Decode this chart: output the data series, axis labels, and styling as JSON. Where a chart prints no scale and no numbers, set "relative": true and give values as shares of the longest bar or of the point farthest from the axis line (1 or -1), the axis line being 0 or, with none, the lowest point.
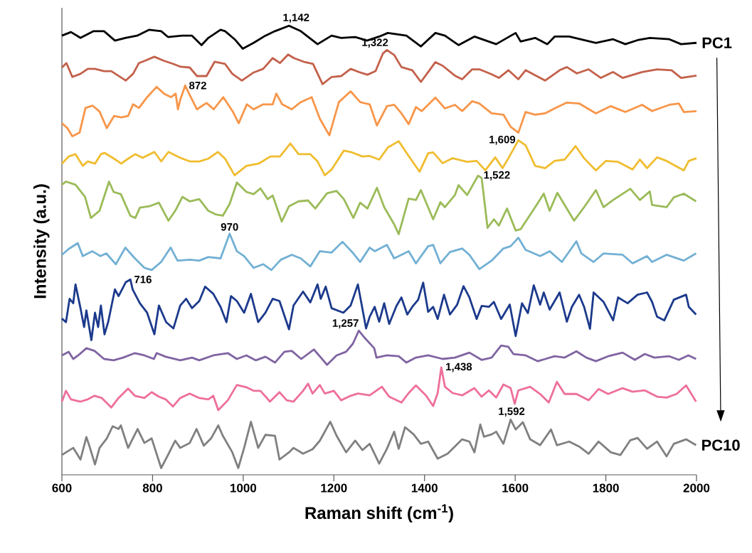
{
  "chart_data": {
    "type": "line",
    "relative": true,
    "xlabel": "Raman shift (cm$^{-1}$)",
    "ylabel": "Intensity (a.u.)",
    "xlim": [
      600,
      2000
    ],
    "xticks": [
      600,
      800,
      1000,
      1200,
      1400,
      1600,
      1800,
      2000
    ],
    "series": [
      {
        "name": "PC1",
        "color": "#000000",
        "x": [
          600,
          620,
          641,
          670,
          693,
          717,
          740,
          766,
          792,
          819,
          834,
          866,
          887,
          908,
          923,
          950,
          960,
          981,
          999,
          1023,
          1049,
          1070,
          1101,
          1127,
          1164,
          1195,
          1216,
          1247,
          1273,
          1300,
          1319,
          1360,
          1392,
          1424,
          1445,
          1475,
          1510,
          1558,
          1601,
          1612,
          1644,
          1671,
          1687,
          1719,
          1778,
          1816,
          1843,
          1870,
          1897,
          1940,
          1966,
          2000
        ],
        "values": [
          0.978,
          0.986,
          0.973,
          0.988,
          0.988,
          0.967,
          0.973,
          0.978,
          0.991,
          0.988,
          0.975,
          0.978,
          0.978,
          0.957,
          0.973,
          0.991,
          0.988,
          0.97,
          0.949,
          0.962,
          0.978,
          0.988,
          1.0,
          0.988,
          0.959,
          0.978,
          0.973,
          0.975,
          0.967,
          0.976,
          0.984,
          0.978,
          0.954,
          0.984,
          0.978,
          0.957,
          0.976,
          0.959,
          0.984,
          0.965,
          0.973,
          0.959,
          0.976,
          0.976,
          0.962,
          0.97,
          0.959,
          0.968,
          0.973,
          0.97,
          0.959,
          0.962
        ]
      },
      {
        "color": "#c3614b",
        "x": [
          600,
          610,
          623,
          641,
          657,
          673,
          693,
          709,
          741,
          757,
          770,
          783,
          804,
          825,
          846,
          861,
          882,
          898,
          919,
          937,
          960,
          976,
          997,
          1023,
          1044,
          1065,
          1081,
          1099,
          1112,
          1133,
          1154,
          1175,
          1195,
          1216,
          1237,
          1258,
          1274,
          1292,
          1308,
          1317,
          1333,
          1349,
          1373,
          1392,
          1408,
          1424,
          1440,
          1467,
          1483,
          1505,
          1521,
          1548,
          1564,
          1585,
          1607,
          1623,
          1666,
          1698,
          1714,
          1736,
          1762,
          1789,
          1816,
          1837,
          1880,
          1913,
          1945,
          1966,
          2000
        ],
        "values": [
          0.907,
          0.917,
          0.886,
          0.893,
          0.904,
          0.904,
          0.899,
          0.899,
          0.878,
          0.893,
          0.917,
          0.922,
          0.931,
          0.922,
          0.915,
          0.909,
          0.907,
          0.888,
          0.888,
          0.92,
          0.915,
          0.893,
          0.878,
          0.896,
          0.904,
          0.928,
          0.917,
          0.936,
          0.928,
          0.92,
          0.915,
          0.87,
          0.886,
          0.888,
          0.904,
          0.896,
          0.891,
          0.899,
          0.938,
          0.946,
          0.935,
          0.908,
          0.901,
          0.875,
          0.897,
          0.919,
          0.911,
          0.889,
          0.881,
          0.903,
          0.903,
          0.892,
          0.884,
          0.901,
          0.881,
          0.901,
          0.878,
          0.901,
          0.908,
          0.894,
          0.903,
          0.884,
          0.897,
          0.884,
          0.897,
          0.903,
          0.901,
          0.884,
          0.889
        ]
      },
      {
        "color": "#f7964a",
        "x": [
          600,
          612,
          623,
          639,
          652,
          668,
          683,
          699,
          715,
          731,
          746,
          757,
          770,
          788,
          809,
          825,
          841,
          851,
          856,
          861,
          872,
          882,
          898,
          919,
          935,
          956,
          977,
          990,
          1008,
          1023,
          1044,
          1065,
          1073,
          1086,
          1107,
          1127,
          1151,
          1169,
          1190,
          1211,
          1237,
          1258,
          1279,
          1295,
          1317,
          1333,
          1349,
          1365,
          1381,
          1394,
          1424,
          1445,
          1467,
          1483,
          1505,
          1521,
          1548,
          1574,
          1590,
          1607,
          1623,
          1644,
          1666,
          1687,
          1714,
          1741,
          1778,
          1811,
          1843,
          1880,
          1902,
          1940,
          1961,
          1972,
          2000
        ],
        "values": [
          0.783,
          0.772,
          0.754,
          0.762,
          0.817,
          0.822,
          0.809,
          0.772,
          0.799,
          0.796,
          0.799,
          0.825,
          0.817,
          0.841,
          0.864,
          0.849,
          0.841,
          0.849,
          0.814,
          0.835,
          0.867,
          0.846,
          0.814,
          0.828,
          0.814,
          0.841,
          0.809,
          0.783,
          0.825,
          0.814,
          0.825,
          0.825,
          0.849,
          0.825,
          0.814,
          0.83,
          0.841,
          0.793,
          0.756,
          0.83,
          0.854,
          0.83,
          0.825,
          0.778,
          0.821,
          0.824,
          0.805,
          0.781,
          0.819,
          0.81,
          0.84,
          0.816,
          0.824,
          0.81,
          0.832,
          0.827,
          0.805,
          0.802,
          0.775,
          0.762,
          0.808,
          0.802,
          0.805,
          0.816,
          0.829,
          0.827,
          0.805,
          0.821,
          0.808,
          0.824,
          0.81,
          0.824,
          0.827,
          0.808,
          0.81
        ]
      },
      {
        "color": "#f0bd30",
        "x": [
          600,
          615,
          630,
          646,
          657,
          673,
          686,
          694,
          715,
          731,
          746,
          762,
          778,
          804,
          819,
          835,
          861,
          882,
          903,
          923,
          944,
          960,
          981,
          1007,
          1034,
          1060,
          1081,
          1104,
          1122,
          1148,
          1164,
          1180,
          1195,
          1222,
          1237,
          1263,
          1279,
          1300,
          1319,
          1343,
          1365,
          1389,
          1408,
          1419,
          1440,
          1462,
          1494,
          1515,
          1534,
          1556,
          1572,
          1585,
          1607,
          1623,
          1644,
          1666,
          1687,
          1709,
          1733,
          1752,
          1778,
          1800,
          1827,
          1859,
          1875,
          1891,
          1913,
          1934,
          1972,
          1983,
          2000
        ],
        "values": [
          0.693,
          0.709,
          0.714,
          0.688,
          0.698,
          0.693,
          0.714,
          0.717,
          0.704,
          0.693,
          0.704,
          0.714,
          0.706,
          0.719,
          0.698,
          0.719,
          0.706,
          0.698,
          0.698,
          0.704,
          0.719,
          0.704,
          0.667,
          0.688,
          0.693,
          0.709,
          0.709,
          0.738,
          0.714,
          0.714,
          0.698,
          0.667,
          0.68,
          0.722,
          0.719,
          0.709,
          0.71,
          0.702,
          0.729,
          0.743,
          0.71,
          0.675,
          0.716,
          0.718,
          0.694,
          0.705,
          0.697,
          0.699,
          0.678,
          0.707,
          0.683,
          0.705,
          0.745,
          0.734,
          0.688,
          0.683,
          0.699,
          0.702,
          0.732,
          0.705,
          0.678,
          0.699,
          0.697,
          0.68,
          0.702,
          0.683,
          0.707,
          0.699,
          0.678,
          0.699,
          0.705
        ]
      },
      {
        "color": "#9bbb59",
        "x": [
          600,
          609,
          630,
          651,
          664,
          683,
          704,
          714,
          730,
          751,
          762,
          772,
          793,
          814,
          835,
          850,
          866,
          882,
          903,
          923,
          939,
          955,
          970,
          986,
          1007,
          1023,
          1038,
          1054,
          1065,
          1085,
          1101,
          1122,
          1143,
          1159,
          1185,
          1206,
          1222,
          1243,
          1258,
          1274,
          1295,
          1311,
          1333,
          1343,
          1365,
          1381,
          1392,
          1419,
          1435,
          1445,
          1467,
          1475,
          1494,
          1518,
          1526,
          1539,
          1553,
          1564,
          1582,
          1601,
          1612,
          1644,
          1663,
          1676,
          1693,
          1709,
          1730,
          1752,
          1778,
          1795,
          1816,
          1854,
          1875,
          1897,
          1902,
          1934,
          1950,
          1972,
          1999
        ],
        "values": [
          0.646,
          0.653,
          0.646,
          0.619,
          0.572,
          0.588,
          0.653,
          0.63,
          0.625,
          0.577,
          0.572,
          0.595,
          0.598,
          0.606,
          0.566,
          0.588,
          0.619,
          0.609,
          0.614,
          0.588,
          0.58,
          0.577,
          0.603,
          0.651,
          0.63,
          0.625,
          0.638,
          0.614,
          0.622,
          0.564,
          0.598,
          0.609,
          0.611,
          0.593,
          0.627,
          0.632,
          0.614,
          0.572,
          0.606,
          0.593,
          0.639,
          0.596,
          0.558,
          0.536,
          0.615,
          0.612,
          0.634,
          0.569,
          0.607,
          0.596,
          0.623,
          0.645,
          0.623,
          0.666,
          0.661,
          0.55,
          0.569,
          0.555,
          0.593,
          0.544,
          0.547,
          0.596,
          0.626,
          0.588,
          0.628,
          0.601,
          0.566,
          0.596,
          0.634,
          0.596,
          0.612,
          0.637,
          0.612,
          0.631,
          0.601,
          0.596,
          0.618,
          0.626,
          0.609
        ]
      },
      {
        "color": "#72b0d4",
        "x": [
          600,
          615,
          635,
          646,
          667,
          685,
          698,
          719,
          740,
          761,
          782,
          798,
          819,
          840,
          855,
          882,
          903,
          923,
          950,
          970,
          986,
          1002,
          1023,
          1044,
          1062,
          1083,
          1107,
          1127,
          1148,
          1169,
          1195,
          1219,
          1243,
          1258,
          1279,
          1290,
          1317,
          1333,
          1349,
          1365,
          1381,
          1408,
          1419,
          1435,
          1456,
          1483,
          1499,
          1521,
          1548,
          1574,
          1590,
          1607,
          1623,
          1655,
          1676,
          1703,
          1735,
          1746,
          1773,
          1795,
          1837,
          1859,
          1891,
          1902,
          1934,
          1972,
          1999
        ],
        "values": [
          0.49,
          0.503,
          0.516,
          0.487,
          0.498,
          0.487,
          0.493,
          0.469,
          0.506,
          0.482,
          0.461,
          0.456,
          0.474,
          0.506,
          0.477,
          0.479,
          0.477,
          0.485,
          0.482,
          0.537,
          0.498,
          0.487,
          0.461,
          0.469,
          0.456,
          0.479,
          0.49,
          0.482,
          0.464,
          0.498,
          0.495,
          0.519,
          0.493,
          0.474,
          0.506,
          0.498,
          0.512,
          0.482,
          0.49,
          0.498,
          0.471,
          0.509,
          0.512,
          0.471,
          0.496,
          0.504,
          0.49,
          0.458,
          0.477,
          0.504,
          0.509,
          0.528,
          0.501,
          0.487,
          0.498,
          0.474,
          0.52,
          0.493,
          0.474,
          0.493,
          0.49,
          0.471,
          0.487,
          0.474,
          0.49,
          0.477,
          0.493
        ]
      },
      {
        "color": "#1c3a8c",
        "x": [
          600,
          609,
          617,
          625,
          630,
          641,
          649,
          654,
          665,
          673,
          680,
          686,
          694,
          702,
          717,
          725,
          741,
          751,
          756,
          772,
          788,
          804,
          814,
          830,
          846,
          861,
          874,
          887,
          903,
          916,
          934,
          950,
          963,
          973,
          986,
          1002,
          1017,
          1033,
          1049,
          1065,
          1080,
          1101,
          1111,
          1132,
          1148,
          1164,
          1171,
          1182,
          1195,
          1221,
          1237,
          1253,
          1271,
          1279,
          1290,
          1300,
          1311,
          1322,
          1338,
          1349,
          1362,
          1373,
          1386,
          1397,
          1408,
          1419,
          1429,
          1443,
          1456,
          1472,
          1486,
          1499,
          1515,
          1526,
          1542,
          1553,
          1569,
          1588,
          1601,
          1615,
          1628,
          1641,
          1655,
          1663,
          1676,
          1698,
          1714,
          1725,
          1741,
          1752,
          1765,
          1773,
          1795,
          1816,
          1827,
          1848,
          1870,
          1891,
          1902,
          1913,
          1929,
          1950,
          1977,
          1983,
          1999
        ],
        "values": [
          0.348,
          0.34,
          0.392,
          0.382,
          0.424,
          0.371,
          0.329,
          0.366,
          0.3,
          0.361,
          0.329,
          0.377,
          0.313,
          0.34,
          0.413,
          0.398,
          0.429,
          0.435,
          0.413,
          0.382,
          0.361,
          0.313,
          0.377,
          0.34,
          0.326,
          0.377,
          0.392,
          0.371,
          0.387,
          0.419,
          0.403,
          0.374,
          0.34,
          0.398,
          0.387,
          0.361,
          0.403,
          0.34,
          0.361,
          0.392,
          0.387,
          0.324,
          0.377,
          0.408,
          0.384,
          0.424,
          0.392,
          0.419,
          0.371,
          0.361,
          0.377,
          0.424,
          0.326,
          0.352,
          0.374,
          0.341,
          0.382,
          0.336,
          0.376,
          0.395,
          0.357,
          0.374,
          0.39,
          0.428,
          0.363,
          0.374,
          0.347,
          0.401,
          0.357,
          0.379,
          0.42,
          0.395,
          0.347,
          0.376,
          0.374,
          0.385,
          0.347,
          0.379,
          0.309,
          0.382,
          0.36,
          0.422,
          0.379,
          0.406,
          0.368,
          0.406,
          0.341,
          0.374,
          0.401,
          0.374,
          0.325,
          0.406,
          0.385,
          0.344,
          0.395,
          0.382,
          0.401,
          0.406,
          0.385,
          0.352,
          0.344,
          0.39,
          0.401,
          0.374,
          0.357
        ]
      },
      {
        "color": "#8064a2",
        "x": [
          600,
          615,
          625,
          636,
          654,
          672,
          693,
          714,
          735,
          761,
          782,
          803,
          809,
          829,
          861,
          887,
          903,
          934,
          966,
          986,
          1007,
          1028,
          1049,
          1070,
          1091,
          1107,
          1128,
          1156,
          1185,
          1206,
          1227,
          1242,
          1255,
          1268,
          1289,
          1294,
          1317,
          1343,
          1360,
          1381,
          1408,
          1440,
          1467,
          1499,
          1526,
          1548,
          1569,
          1585,
          1596,
          1623,
          1650,
          1687,
          1709,
          1735,
          1757,
          1778,
          1805,
          1837,
          1864,
          1886,
          1907,
          1940,
          1961,
          1982,
          1999
        ],
        "values": [
          0.266,
          0.274,
          0.258,
          0.266,
          0.282,
          0.276,
          0.258,
          0.255,
          0.261,
          0.271,
          0.266,
          0.258,
          0.271,
          0.263,
          0.255,
          0.261,
          0.255,
          0.266,
          0.271,
          0.258,
          0.266,
          0.255,
          0.263,
          0.25,
          0.274,
          0.276,
          0.258,
          0.279,
          0.245,
          0.266,
          0.274,
          0.292,
          0.321,
          0.305,
          0.282,
          0.261,
          0.266,
          0.264,
          0.25,
          0.261,
          0.266,
          0.258,
          0.261,
          0.272,
          0.256,
          0.261,
          0.288,
          0.285,
          0.269,
          0.266,
          0.253,
          0.264,
          0.261,
          0.275,
          0.261,
          0.253,
          0.264,
          0.272,
          0.256,
          0.269,
          0.261,
          0.264,
          0.256,
          0.266,
          0.258
        ]
      },
      {
        "color": "#ee6f9c",
        "x": [
          600,
          609,
          620,
          641,
          657,
          672,
          688,
          709,
          725,
          746,
          761,
          782,
          798,
          814,
          829,
          845,
          861,
          882,
          903,
          923,
          934,
          945,
          966,
          986,
          1007,
          1023,
          1038,
          1059,
          1080,
          1096,
          1111,
          1132,
          1143,
          1153,
          1169,
          1180,
          1200,
          1216,
          1237,
          1253,
          1279,
          1306,
          1322,
          1349,
          1365,
          1381,
          1403,
          1419,
          1429,
          1437,
          1445,
          1462,
          1483,
          1510,
          1526,
          1542,
          1558,
          1574,
          1590,
          1599,
          1607,
          1633,
          1655,
          1674,
          1692,
          1709,
          1735,
          1762,
          1784,
          1805,
          1837,
          1859,
          1886,
          1913,
          1934,
          1956,
          1977,
          1999
        ],
        "values": [
          0.163,
          0.187,
          0.168,
          0.163,
          0.168,
          0.176,
          0.171,
          0.15,
          0.171,
          0.192,
          0.176,
          0.171,
          0.184,
          0.174,
          0.168,
          0.152,
          0.171,
          0.181,
          0.171,
          0.168,
          0.176,
          0.144,
          0.166,
          0.2,
          0.195,
          0.187,
          0.187,
          0.163,
          0.184,
          0.166,
          0.163,
          0.187,
          0.203,
          0.181,
          0.2,
          0.181,
          0.187,
          0.166,
          0.176,
          0.181,
          0.177,
          0.196,
          0.174,
          0.161,
          0.182,
          0.199,
          0.177,
          0.153,
          0.182,
          0.239,
          0.196,
          0.182,
          0.177,
          0.193,
          0.174,
          0.188,
          0.172,
          0.201,
          0.193,
          0.158,
          0.188,
          0.196,
          0.18,
          0.161,
          0.207,
          0.18,
          0.18,
          0.166,
          0.191,
          0.18,
          0.193,
          0.185,
          0.188,
          0.174,
          0.172,
          0.18,
          0.199,
          0.163
        ]
      },
      {
        "name": "PC10",
        "color": "#808080",
        "x": [
          600,
          609,
          625,
          641,
          654,
          662,
          673,
          683,
          699,
          712,
          725,
          730,
          746,
          767,
          782,
          798,
          819,
          834,
          850,
          861,
          882,
          897,
          913,
          929,
          945,
          955,
          976,
          989,
          1002,
          1017,
          1033,
          1049,
          1070,
          1080,
          1101,
          1111,
          1132,
          1153,
          1169,
          1192,
          1206,
          1227,
          1247,
          1263,
          1279,
          1300,
          1317,
          1333,
          1343,
          1357,
          1376,
          1392,
          1408,
          1429,
          1451,
          1483,
          1499,
          1510,
          1523,
          1531,
          1548,
          1558,
          1574,
          1590,
          1601,
          1617,
          1633,
          1655,
          1679,
          1692,
          1719,
          1741,
          1762,
          1784,
          1811,
          1832,
          1854,
          1870,
          1891,
          1913,
          1934,
          1950,
          1977,
          1999
        ],
        "values": [
          0.044,
          0.05,
          0.06,
          0.034,
          0.084,
          0.06,
          0.023,
          0.06,
          0.081,
          0.108,
          0.102,
          0.11,
          0.06,
          0.102,
          0.071,
          0.081,
          0.015,
          0.044,
          0.076,
          0.06,
          0.071,
          0.102,
          0.065,
          0.081,
          0.11,
          0.087,
          0.05,
          0.015,
          0.06,
          0.118,
          0.06,
          0.089,
          0.087,
          0.034,
          0.05,
          0.06,
          0.047,
          0.057,
          0.076,
          0.118,
          0.087,
          0.05,
          0.076,
          0.055,
          0.069,
          0.025,
          0.058,
          0.096,
          0.058,
          0.106,
          0.09,
          0.069,
          0.074,
          0.036,
          0.047,
          0.079,
          0.074,
          0.05,
          0.112,
          0.085,
          0.09,
          0.096,
          0.069,
          0.123,
          0.101,
          0.117,
          0.079,
          0.066,
          0.101,
          0.066,
          0.074,
          0.063,
          0.047,
          0.074,
          0.05,
          0.044,
          0.077,
          0.082,
          0.058,
          0.074,
          0.041,
          0.069,
          0.079,
          0.066
        ]
      }
    ],
    "annotations": [
      {
        "text": "1,142",
        "x": 1101,
        "y": 1.0
      },
      {
        "text": "1,322",
        "x": 1322,
        "y": 0.946
      },
      {
        "text": "872",
        "x": 872,
        "y": 0.867
      },
      {
        "text": "1,609",
        "x": 1609,
        "y": 0.745
      },
      {
        "text": "1,522",
        "x": 1522,
        "y": 0.666
      },
      {
        "text": "970",
        "x": 970,
        "y": 0.537
      },
      {
        "text": "716",
        "x": 751,
        "y": 0.435
      },
      {
        "text": "1,257",
        "x": 1257,
        "y": 0.321
      },
      {
        "text": "1,438",
        "x": 1438,
        "y": 0.239
      },
      {
        "text": "1,592",
        "x": 1592,
        "y": 0.123
      }
    ]
  }
}
